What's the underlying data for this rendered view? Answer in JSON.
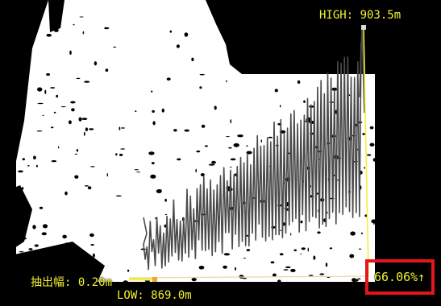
{
  "overlay": {
    "high_label": "HIGH: 903.5m",
    "low_label": "LOW: 869.0m",
    "width_label": "抽出幅: 0.20m",
    "percent_label": "66.06%↑"
  },
  "chart_data": {
    "type": "line",
    "title": "",
    "high_m": 903.5,
    "low_m": 869.0,
    "extraction_width_m": 0.2,
    "percent": 66.06
  },
  "colors": {
    "text": "#f2f230",
    "guide_line": "#f5f03a",
    "highlight_box": "#e8141c",
    "profile_line": "#4a4a4a",
    "terrain_dark": "#000000",
    "terrain_light": "#ffffff"
  }
}
